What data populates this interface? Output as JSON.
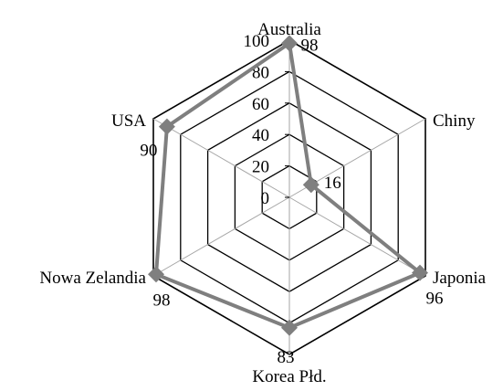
{
  "chart_data": {
    "type": "radar",
    "categories": [
      "Australia",
      "Chiny",
      "Japonia",
      "Korea Płd.",
      "Nowa Zelandia",
      "USA"
    ],
    "series": [
      {
        "values": [
          98,
          16,
          96,
          83,
          98,
          90
        ]
      }
    ],
    "data_labels": [
      "98",
      "16",
      "96",
      "83",
      "98",
      "90"
    ],
    "radial_axis": {
      "min": 0,
      "max": 100,
      "step": 20,
      "ticks": [
        "0",
        "20",
        "40",
        "60",
        "80",
        "100"
      ]
    },
    "grid": true,
    "legend": "none",
    "colors": {
      "series": "#7f7f7f",
      "grid": "#000000",
      "spokes": "#a6a6a6"
    },
    "marker": "diamond"
  }
}
